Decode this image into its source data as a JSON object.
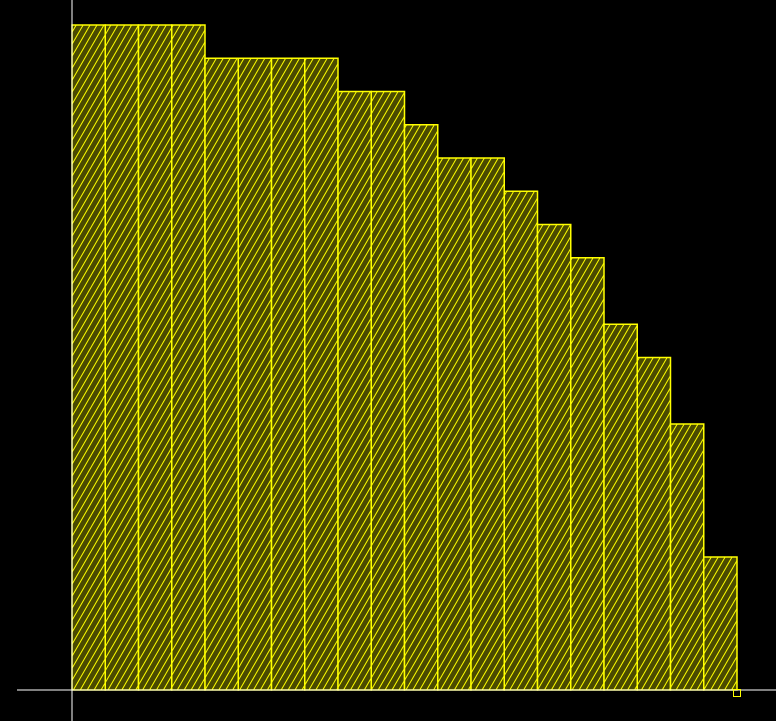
{
  "colors": {
    "background": "#000000",
    "bar_fill": "#4a4a00",
    "bar_hatch": "#ffff00",
    "bar_outline": "#ffff00",
    "axis": "#ffffff",
    "marker": "#ffff00"
  },
  "chart_data": {
    "type": "bar",
    "orientation": "vertical",
    "bar_width": 1,
    "fill_pattern": "diagonal-hatch",
    "grid": false,
    "legend": "none",
    "xlim": [
      0,
      20
    ],
    "ylim": [
      0,
      20
    ],
    "x": [
      0.5,
      1.5,
      2.5,
      3.5,
      4.5,
      5.5,
      6.5,
      7.5,
      8.5,
      9.5,
      10.5,
      11.5,
      12.5,
      13.5,
      14.5,
      15.5,
      16.5,
      17.5,
      18.5,
      19.5
    ],
    "values": [
      20,
      20,
      20,
      20,
      19,
      19,
      19,
      19,
      18,
      18,
      17,
      16,
      16,
      15,
      14,
      13,
      11,
      10,
      8,
      4
    ],
    "marker": {
      "x": 20,
      "y": 0,
      "shape": "square"
    }
  }
}
